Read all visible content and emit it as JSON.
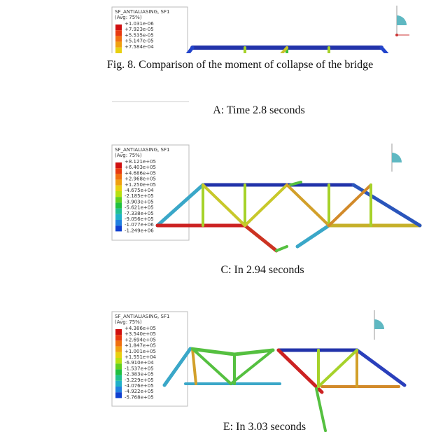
{
  "caption": "Fig.  8. Comparison of the moment of collapse of the bridge",
  "panels": [
    {
      "label": "A: Time 2.8 seconds",
      "legend": {
        "title": "SF_ANTIALIASING, SF1",
        "subtitle": "(Avg: 75%)",
        "values": [
          "+1.031e-06",
          "+7.923e-05",
          "+5.535e-05",
          "+5.147e-05",
          "+7.584e-04"
        ]
      }
    },
    {
      "label": "C: In 2.94 seconds",
      "legend": {
        "title": "SF_ANTIALIASING, SF1",
        "subtitle": "(Avg: 75%)",
        "values": [
          "+8.121e+05",
          "+6.403e+05",
          "+4.686e+05",
          "+2.968e+05",
          "+1.250e+05",
          "-4.675e+04",
          "-2.185e+05",
          "-3.903e+05",
          "-5.621e+05",
          "-7.338e+05",
          "-9.056e+05",
          "-1.077e+06",
          "-1.249e+06"
        ]
      }
    },
    {
      "label": "E: In 3.03 seconds",
      "legend": {
        "title": "SF_ANTIALIASING, SF1",
        "subtitle": "(Avg: 75%)",
        "values": [
          "+4.386e+05",
          "+3.540e+05",
          "+2.694e+05",
          "+1.847e+05",
          "+1.001e+05",
          "+1.551e+04",
          "-6.910e+04",
          "-1.537e+05",
          "-2.383e+05",
          "-3.229e+05",
          "-4.076e+05",
          "-4.922e+05",
          "-5.768e+05"
        ]
      }
    }
  ]
}
